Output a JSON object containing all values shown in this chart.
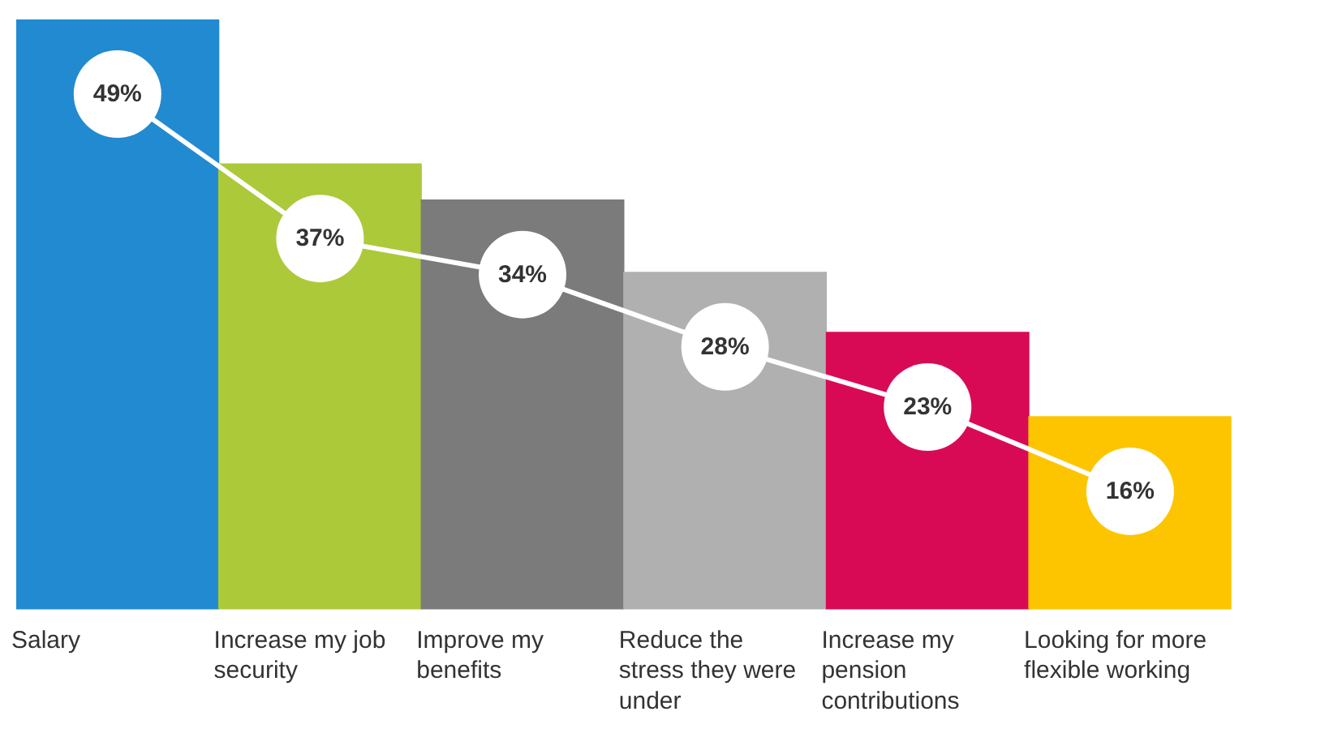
{
  "chart_data": {
    "type": "bar",
    "categories": [
      "Salary",
      "Increase my job security",
      "Improve my benefits",
      "Reduce the stress they were under",
      "Increase my pension contributions",
      "Looking for more flexible working"
    ],
    "values": [
      49,
      37,
      34,
      28,
      23,
      16
    ],
    "value_labels": [
      "49%",
      "37%",
      "34%",
      "28%",
      "23%",
      "16%"
    ],
    "colors": [
      "#228ad0",
      "#acc93a",
      "#7b7b7c",
      "#b1b0b1",
      "#d90a55",
      "#fdc500"
    ],
    "grid": false,
    "legend": false,
    "tick_labels": "x"
  }
}
